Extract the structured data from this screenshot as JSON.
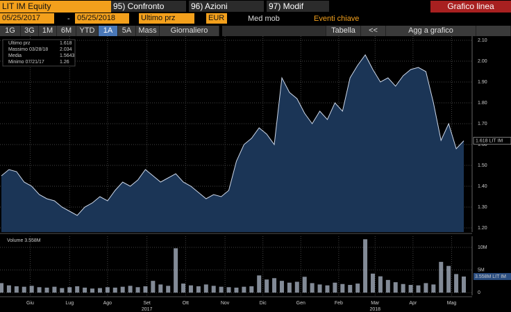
{
  "toolbar": {
    "ticker": "LIT IM Equity",
    "menu": [
      "95) Confronto",
      "96) Azioni",
      "97) Modif"
    ],
    "view": "Grafico linea",
    "start_date": "05/25/2017",
    "separator": "-",
    "end_date": "05/25/2018",
    "field": "Ultimo prz",
    "currency": "EUR",
    "options": [
      "Med mob",
      "Eventi chiave"
    ],
    "periods": [
      "1G",
      "3G",
      "1M",
      "6M",
      "YTD",
      "1A",
      "5A",
      "Mass"
    ],
    "frequency": "Giornaliero",
    "table": "Tabella",
    "collapse": "<<",
    "add": "Agg a grafico"
  },
  "chart_data": [
    {
      "type": "line",
      "legend": [
        [
          "Ultimo prz",
          1.618
        ],
        [
          "Massimo 03/28/18",
          2.034
        ],
        [
          "Media",
          1.5643
        ],
        [
          "Minimo 07/21/17",
          1.26
        ]
      ],
      "price_tag": "1.618 LIT IM",
      "series": [
        {
          "name": "Ultimo prz",
          "color": "#cdd8ea",
          "values": [
            1.45,
            1.48,
            1.47,
            1.42,
            1.4,
            1.36,
            1.34,
            1.33,
            1.3,
            1.28,
            1.26,
            1.3,
            1.32,
            1.35,
            1.33,
            1.38,
            1.42,
            1.4,
            1.43,
            1.48,
            1.45,
            1.42,
            1.44,
            1.46,
            1.42,
            1.4,
            1.37,
            1.34,
            1.36,
            1.35,
            1.38,
            1.52,
            1.6,
            1.63,
            1.68,
            1.65,
            1.6,
            1.92,
            1.85,
            1.82,
            1.75,
            1.7,
            1.76,
            1.72,
            1.8,
            1.76,
            1.92,
            1.98,
            2.03,
            1.96,
            1.9,
            1.92,
            1.88,
            1.93,
            1.96,
            1.97,
            1.95,
            1.8,
            1.62,
            1.7,
            1.58,
            1.618
          ]
        }
      ],
      "xlim": [
        0,
        61
      ],
      "ylim": [
        1.18,
        2.12
      ],
      "yticks": [
        {
          "value": 1.2,
          "label": "1.20"
        },
        {
          "value": 1.3,
          "label": "1.30"
        },
        {
          "value": 1.4,
          "label": "1.40"
        },
        {
          "value": 1.5,
          "label": "1.50"
        },
        {
          "value": 1.6,
          "label": "1.60"
        },
        {
          "value": 1.7,
          "label": "1.70"
        },
        {
          "value": 1.8,
          "label": "1.80"
        },
        {
          "value": 1.9,
          "label": "1.90"
        },
        {
          "value": 2.0,
          "label": "2.00"
        },
        {
          "value": 2.1,
          "label": "2.10"
        }
      ],
      "grid": true
    },
    {
      "type": "bar",
      "legend": "Volume 3.558M",
      "price_tag": "3.558M LIT IM",
      "color": "#aeb8c8",
      "values": [
        2100000,
        1600000,
        1400000,
        1300000,
        1500000,
        1200000,
        1100000,
        1300000,
        1000000,
        1200000,
        1400000,
        1100000,
        900000,
        1000000,
        1200000,
        1100000,
        1300000,
        1500000,
        1200000,
        1400000,
        2600000,
        1800000,
        1500000,
        9800000,
        2000000,
        1600000,
        1400000,
        1800000,
        1500000,
        1300000,
        1200000,
        1100000,
        1300000,
        1400000,
        3800000,
        2900000,
        3200000,
        2600000,
        2200000,
        2400000,
        3500000,
        2100000,
        1800000,
        1600000,
        2200000,
        1900000,
        1700000,
        2000000,
        11800000,
        4200000,
        3600000,
        2800000,
        2300000,
        1900000,
        1700000,
        1600000,
        2100000,
        1800000,
        6800000,
        5900000,
        4100000,
        3558000
      ],
      "xlim": [
        0,
        61
      ],
      "ylim": [
        -600000,
        12460000
      ],
      "yticks": [
        0,
        {
          "value": 5000000,
          "label": "5M"
        },
        {
          "value": 10000000,
          "label": "10M"
        }
      ],
      "xticks": [
        {
          "value": 3.8,
          "label": "Giu"
        },
        {
          "value": 9,
          "label": "Lug"
        },
        {
          "value": 14,
          "label": "Ago"
        },
        {
          "value": 19.2,
          "label": "Set"
        },
        {
          "value": 24.3,
          "label": "Ott"
        },
        {
          "value": 29.5,
          "label": "Nov"
        },
        {
          "value": 34.5,
          "label": "Dic"
        },
        {
          "value": 39.5,
          "label": "Gen"
        },
        {
          "value": 44.5,
          "label": "Feb"
        },
        {
          "value": 49.3,
          "label": "Mar"
        },
        {
          "value": 54.3,
          "label": "Apr"
        },
        {
          "value": 59.4,
          "label": "Mag"
        }
      ],
      "years": [
        {
          "value": 19.2,
          "label": "2017"
        },
        {
          "value": 49.3,
          "label": "2018"
        }
      ],
      "grid": true
    }
  ]
}
